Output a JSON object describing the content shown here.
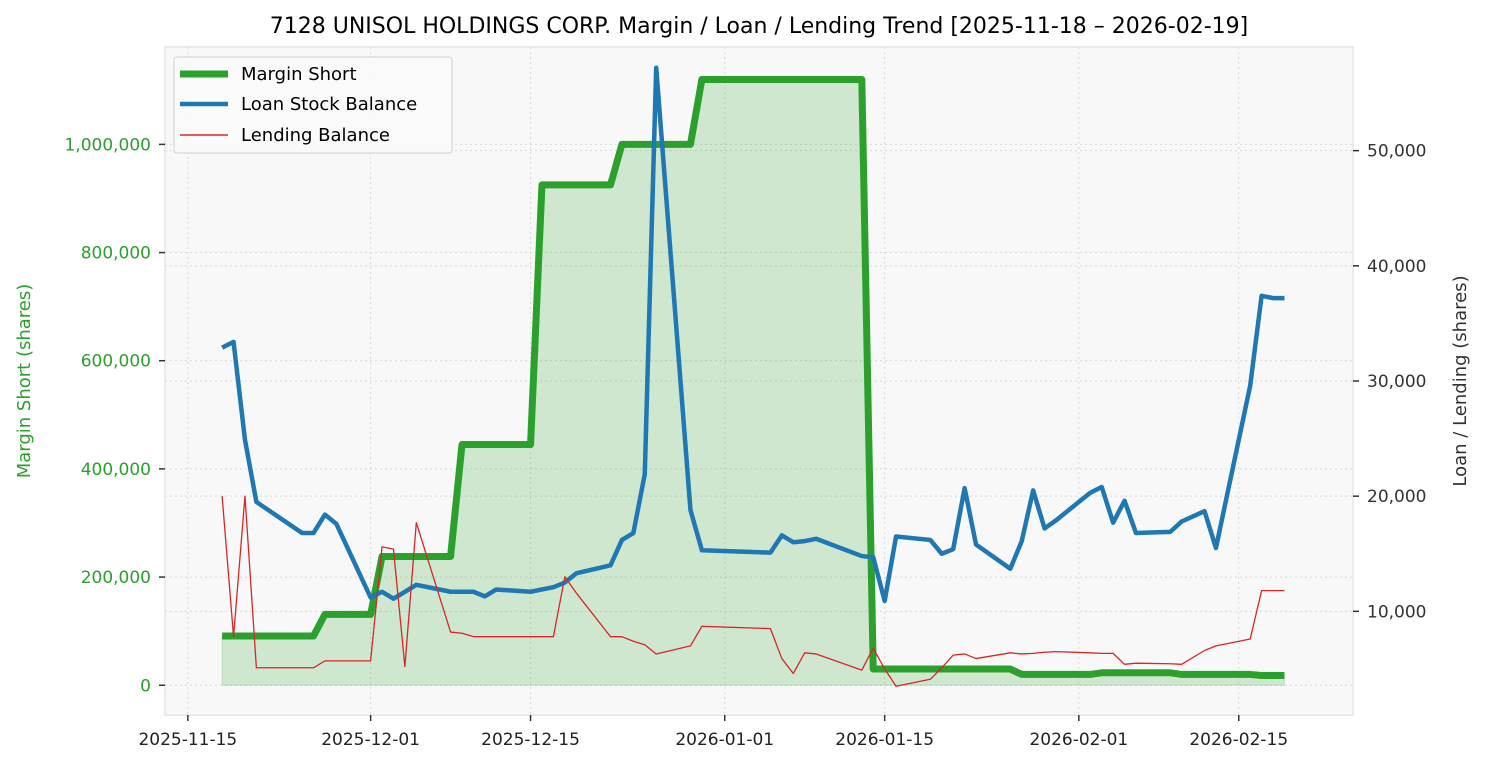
{
  "chart_data": {
    "type": "line",
    "title": "7128 UNISOL HOLDINGS CORP. Margin / Loan / Lending Trend [2025-11-18 – 2026-02-19]",
    "xlabel": "",
    "ylabel_left": "Margin Short (shares)",
    "ylabel_right": "Loan / Lending (shares)",
    "ylim_left": [
      -55000,
      1180000
    ],
    "ylim_right": [
      1000,
      59000
    ],
    "xlim": [
      "2025-11-13",
      "2026-02-25"
    ],
    "grid": true,
    "legend_position": "top-left",
    "x_ticks": [
      "2025-11-15",
      "2025-12-01",
      "2025-12-15",
      "2026-01-01",
      "2026-01-15",
      "2026-02-01",
      "2026-02-15"
    ],
    "y_ticks_left": [
      0,
      200000,
      400000,
      600000,
      800000,
      1000000
    ],
    "y_tick_labels_left": [
      "0",
      "200,000",
      "400,000",
      "600,000",
      "800,000",
      "1,000,000"
    ],
    "y_ticks_right": [
      10000,
      20000,
      30000,
      40000,
      50000
    ],
    "y_tick_labels_right": [
      "10,000",
      "20,000",
      "30,000",
      "40,000",
      "50,000"
    ],
    "colors": {
      "margin": "#2ca02c",
      "loan": "#1f77b4",
      "lending": "#d62728",
      "left_axis": "#2ca02c",
      "right_axis": "#333333"
    },
    "dates": [
      "2025-11-18",
      "2025-11-19",
      "2025-11-20",
      "2025-11-21",
      "2025-11-25",
      "2025-11-26",
      "2025-11-27",
      "2025-11-28",
      "2025-12-01",
      "2025-12-02",
      "2025-12-03",
      "2025-12-04",
      "2025-12-05",
      "2025-12-08",
      "2025-12-09",
      "2025-12-10",
      "2025-12-11",
      "2025-12-12",
      "2025-12-15",
      "2025-12-16",
      "2025-12-17",
      "2025-12-18",
      "2025-12-19",
      "2025-12-22",
      "2025-12-23",
      "2025-12-24",
      "2025-12-25",
      "2025-12-26",
      "2025-12-29",
      "2025-12-30",
      "2026-01-05",
      "2026-01-06",
      "2026-01-07",
      "2026-01-08",
      "2026-01-09",
      "2026-01-13",
      "2026-01-14",
      "2026-01-15",
      "2026-01-16",
      "2026-01-19",
      "2026-01-20",
      "2026-01-21",
      "2026-01-22",
      "2026-01-23",
      "2026-01-26",
      "2026-01-27",
      "2026-01-28",
      "2026-01-29",
      "2026-01-30",
      "2026-02-02",
      "2026-02-03",
      "2026-02-04",
      "2026-02-05",
      "2026-02-06",
      "2026-02-09",
      "2026-02-10",
      "2026-02-12",
      "2026-02-13",
      "2026-02-16",
      "2026-02-17",
      "2026-02-18",
      "2026-02-19"
    ],
    "series": [
      {
        "name": "Margin Short",
        "axis": "left",
        "values": [
          91000,
          91000,
          91000,
          91000,
          91000,
          91000,
          131000,
          131000,
          131000,
          238000,
          238000,
          238000,
          238000,
          238000,
          445000,
          445000,
          445000,
          445000,
          445000,
          925000,
          925000,
          925000,
          925000,
          925000,
          1000000,
          1000000,
          1000000,
          1000000,
          1000000,
          1120000,
          1120000,
          1120000,
          1120000,
          1120000,
          1120000,
          1120000,
          30000,
          30000,
          30000,
          30000,
          30000,
          30000,
          30000,
          30000,
          30000,
          20000,
          20000,
          20000,
          20000,
          20000,
          23000,
          23000,
          23000,
          23000,
          23000,
          20000,
          20000,
          20000,
          20000,
          18000,
          18000,
          18000
        ]
      },
      {
        "name": "Loan Stock Balance",
        "axis": "right",
        "values": [
          32900,
          33400,
          24900,
          19500,
          16800,
          16800,
          18400,
          17600,
          11200,
          11700,
          11100,
          11700,
          12300,
          11700,
          11700,
          11700,
          11300,
          11900,
          11700,
          11900,
          12100,
          12500,
          13300,
          14000,
          16200,
          16800,
          21900,
          57200,
          18800,
          15300,
          15100,
          16600,
          16000,
          16100,
          16300,
          14800,
          14700,
          10900,
          16500,
          16200,
          15000,
          15400,
          20700,
          15800,
          13700,
          16100,
          20500,
          17200,
          17900,
          20300,
          20800,
          17700,
          19600,
          16800,
          16900,
          17800,
          18700,
          15500,
          29600,
          37400,
          37200,
          37200
        ]
      },
      {
        "name": "Lending Balance",
        "axis": "right",
        "values": [
          20000,
          7800,
          20000,
          5100,
          5100,
          5100,
          5700,
          5700,
          5700,
          15600,
          15400,
          5200,
          17700,
          8200,
          8100,
          7800,
          7800,
          7800,
          7800,
          7800,
          7800,
          13000,
          11600,
          7800,
          7800,
          7400,
          7100,
          6300,
          7000,
          8700,
          8500,
          5900,
          4600,
          6400,
          6300,
          4900,
          6800,
          5000,
          3500,
          4100,
          5100,
          6200,
          6300,
          5900,
          6400,
          6300,
          6350,
          6450,
          6500,
          6400,
          6350,
          6350,
          5400,
          5500,
          5450,
          5400,
          6600,
          7000,
          7600,
          11800,
          11800,
          11800
        ]
      }
    ]
  }
}
